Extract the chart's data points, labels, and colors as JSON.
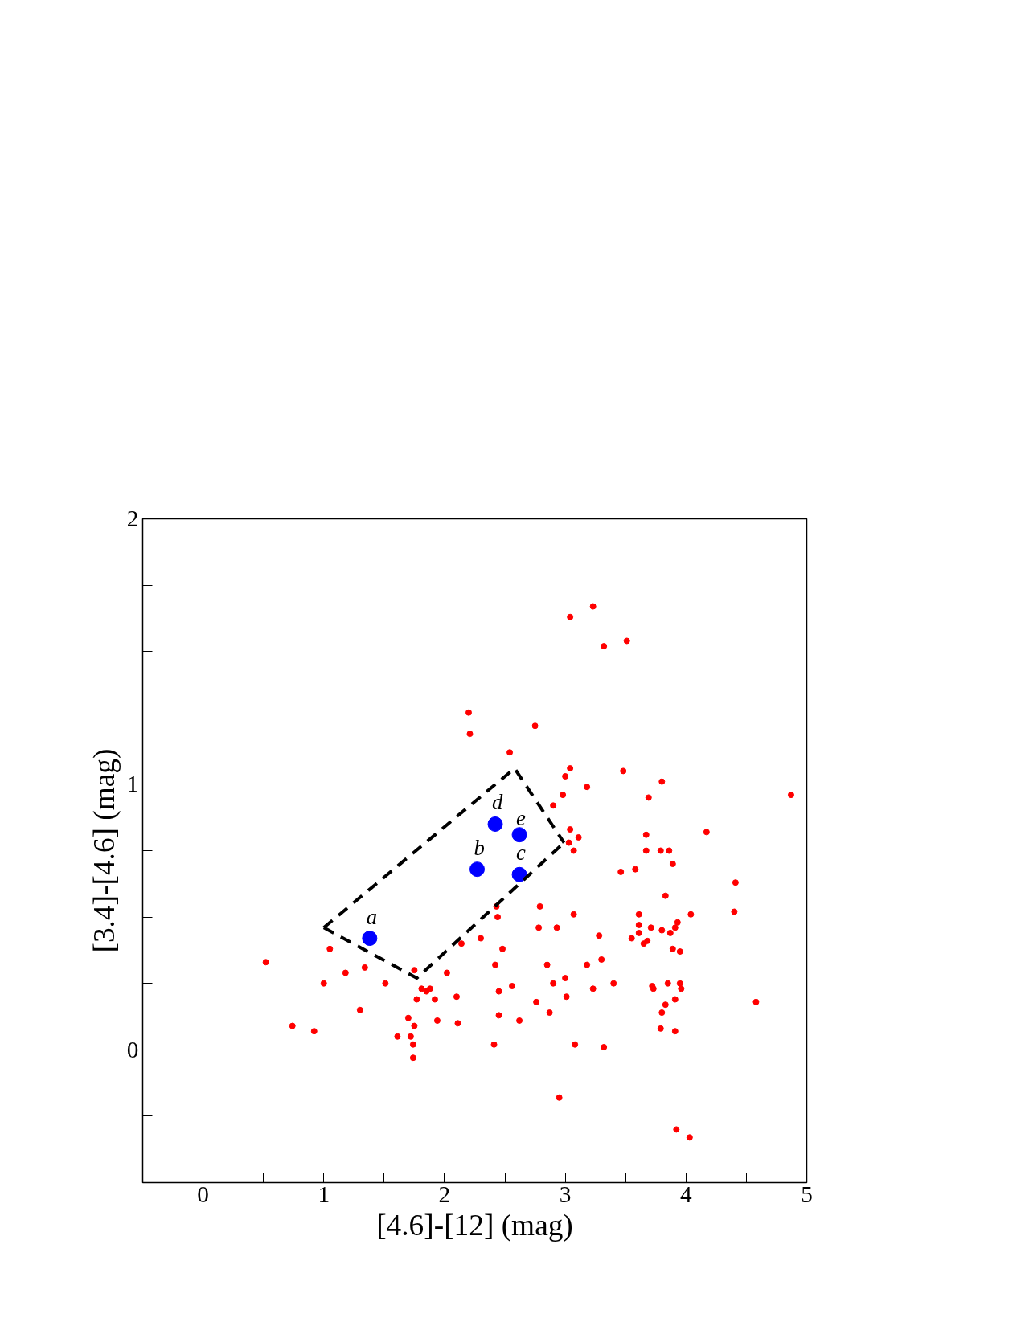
{
  "chart_data": {
    "type": "scatter",
    "xlabel": "[4.6]-[12] (mag)",
    "ylabel": "[3.4]-[4.6] (mag)",
    "xlim": [
      -0.5,
      5
    ],
    "ylim": [
      -0.5,
      2
    ],
    "xticks": [
      0,
      {
        "value": 0.5,
        "label": null
      },
      1,
      {
        "value": 1.5,
        "label": null
      },
      2,
      {
        "value": 2.5,
        "label": null
      },
      3,
      {
        "value": 3.5,
        "label": null
      },
      4,
      {
        "value": 4.5,
        "label": null
      },
      5
    ],
    "yticks": [
      {
        "value": -0.25,
        "label": null
      },
      0,
      {
        "value": 0.25,
        "label": null
      },
      {
        "value": 0.5,
        "label": null
      },
      {
        "value": 0.75,
        "label": null
      },
      1,
      {
        "value": 1.25,
        "label": null
      },
      {
        "value": 1.5,
        "label": null
      },
      {
        "value": 1.75,
        "label": null
      },
      2
    ],
    "grid": false,
    "marker": "circle",
    "series": [
      {
        "type": "scatter",
        "color": "#ff0000",
        "x": [
          0.52,
          0.74,
          0.92,
          1.0,
          1.05,
          1.18,
          1.3,
          1.34,
          1.51,
          1.61,
          1.7,
          1.72,
          1.74,
          1.74,
          1.75,
          1.75,
          1.77,
          1.81,
          1.85,
          1.88,
          1.92,
          1.94,
          2.02,
          2.1,
          2.11,
          2.14,
          2.2,
          2.21,
          2.3,
          2.41,
          2.42,
          2.43,
          2.44,
          2.45,
          2.45,
          2.48,
          2.54,
          2.56,
          2.62,
          2.75,
          2.76,
          2.78,
          2.79,
          2.85,
          2.87,
          2.9,
          2.9,
          2.93,
          2.95,
          2.98,
          3.0,
          3.0,
          3.01,
          3.03,
          3.04,
          3.04,
          3.04,
          3.07,
          3.07,
          3.08,
          3.11,
          3.18,
          3.18,
          3.23,
          3.23,
          3.28,
          3.3,
          3.32,
          3.32,
          3.4,
          3.46,
          3.48,
          3.51,
          3.55,
          3.58,
          3.61,
          3.61,
          3.61,
          3.65,
          3.67,
          3.67,
          3.68,
          3.69,
          3.71,
          3.72,
          3.73,
          3.79,
          3.79,
          3.8,
          3.8,
          3.8,
          3.83,
          3.83,
          3.85,
          3.86,
          3.87,
          3.89,
          3.89,
          3.91,
          3.91,
          3.91,
          3.92,
          3.93,
          3.95,
          3.95,
          3.96,
          4.04,
          4.03,
          4.17,
          4.4,
          4.41,
          4.58,
          4.87
        ],
        "values": [
          0.33,
          0.09,
          0.07,
          0.25,
          0.38,
          0.29,
          0.15,
          0.31,
          0.25,
          0.05,
          0.12,
          0.05,
          0.02,
          -0.03,
          0.3,
          0.09,
          0.19,
          0.23,
          0.22,
          0.23,
          0.19,
          0.11,
          0.29,
          0.2,
          0.1,
          0.4,
          1.27,
          1.19,
          0.42,
          0.02,
          0.32,
          0.54,
          0.5,
          0.22,
          0.13,
          0.38,
          1.12,
          0.24,
          0.11,
          1.22,
          0.18,
          0.46,
          0.54,
          0.32,
          0.14,
          0.92,
          0.25,
          0.46,
          -0.18,
          0.96,
          0.27,
          1.03,
          0.2,
          0.78,
          1.63,
          1.06,
          0.83,
          0.75,
          0.51,
          0.02,
          0.8,
          0.99,
          0.32,
          1.67,
          0.23,
          0.43,
          0.34,
          1.52,
          0.01,
          0.25,
          0.67,
          1.05,
          1.54,
          0.42,
          0.68,
          0.51,
          0.47,
          0.44,
          0.4,
          0.81,
          0.75,
          0.41,
          0.95,
          0.46,
          0.24,
          0.23,
          0.75,
          0.08,
          1.01,
          0.45,
          0.14,
          0.58,
          0.17,
          0.25,
          0.75,
          0.44,
          0.7,
          0.38,
          0.46,
          0.19,
          0.07,
          -0.3,
          0.48,
          0.37,
          0.25,
          0.23,
          0.51,
          -0.33,
          0.82,
          0.52,
          0.63,
          0.18,
          0.96
        ]
      },
      {
        "type": "scatter",
        "color": "#0000ff",
        "x": [
          1.38,
          2.27,
          2.62,
          2.42,
          2.62
        ],
        "values": [
          0.42,
          0.68,
          0.66,
          0.85,
          0.81
        ]
      },
      {
        "type": "line",
        "color": "#000000",
        "line_style": "dashed",
        "marker": "none",
        "x": [
          1.0,
          2.58,
          2.99
        ],
        "values": [
          0.46,
          1.06,
          0.78
        ]
      },
      {
        "type": "line",
        "color": "#000000",
        "line_style": "dashed",
        "marker": "none",
        "x": [
          1.0,
          1.77,
          2.99
        ],
        "values": [
          0.46,
          0.27,
          0.78
        ]
      }
    ],
    "annotations": [
      {
        "text": "a",
        "x": 1.38,
        "y": 0.42
      },
      {
        "text": "b",
        "x": 2.27,
        "y": 0.68
      },
      {
        "text": "c",
        "x": 2.62,
        "y": 0.66
      },
      {
        "text": "d",
        "x": 2.42,
        "y": 0.85
      },
      {
        "text": "e",
        "x": 2.62,
        "y": 0.81
      }
    ]
  }
}
